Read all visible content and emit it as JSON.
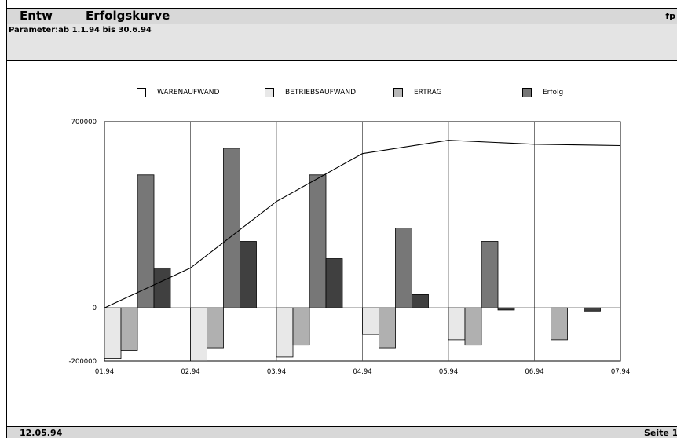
{
  "header": {
    "app": "Entw",
    "title": "Erfolgskurve",
    "user": "fp"
  },
  "parameters": "Parameter:ab 1.1.94 bis 30.6.94",
  "footer": {
    "date": "12.05.94",
    "page": "Seite 1"
  },
  "legend": [
    {
      "label": "WARENAUFWAND",
      "color": "#ffffff"
    },
    {
      "label": "BETRIEBSAUFWAND",
      "color": "#e8e8e8"
    },
    {
      "label": "ERTRAG",
      "color": "#b8b8b8"
    },
    {
      "label": "Erfolg",
      "color": "#777777"
    }
  ],
  "chart_data": {
    "type": "bar",
    "title": "Erfolgskurve",
    "x_tick_labels": [
      "01.94",
      "02.94",
      "03.94",
      "04.94",
      "05.94",
      "06.94",
      "07.94"
    ],
    "y_tick_labels": [
      "700000",
      "0",
      "-200000"
    ],
    "ylim": [
      -200000,
      700000
    ],
    "grid": "vertical",
    "legend_position": "top",
    "bar_series": [
      {
        "color": "#e8e8e8",
        "values": [
          -190000,
          -200000,
          -185000,
          -100000,
          -120000,
          0
        ]
      },
      {
        "color": "#b0b0b0",
        "values": [
          -160000,
          -150000,
          -140000,
          -150000,
          -140000,
          -120000
        ]
      },
      {
        "color": "#777777",
        "values": [
          500000,
          600000,
          500000,
          300000,
          250000,
          0
        ]
      },
      {
        "color": "#404040",
        "values": [
          150000,
          250000,
          185000,
          50000,
          -8000,
          -12000
        ]
      }
    ],
    "line_series": {
      "x": [
        "01.94",
        "02.94",
        "03.94",
        "04.94",
        "05.94",
        "06.94",
        "07.94"
      ],
      "values": [
        0,
        150000,
        400000,
        580000,
        630000,
        615000,
        610000
      ]
    }
  }
}
